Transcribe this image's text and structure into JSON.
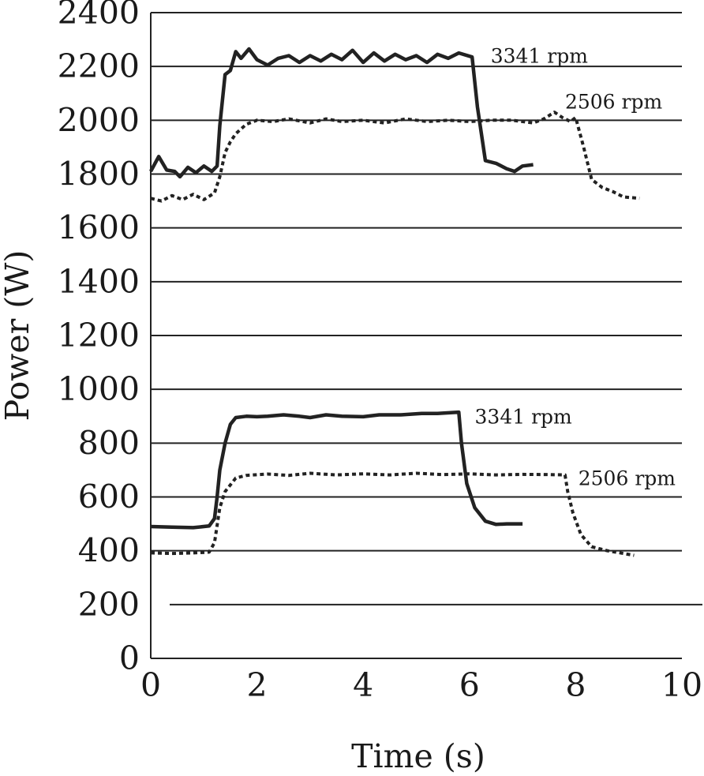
{
  "chart_data": {
    "type": "line",
    "xlabel": "Time (s)",
    "ylabel": "Power (W)",
    "xlim": [
      0,
      10
    ],
    "ylim": [
      0,
      2400
    ],
    "x_ticks": [
      "0",
      "2",
      "4",
      "6",
      "8",
      "10"
    ],
    "y_ticks": [
      "0",
      "200",
      "400",
      "600",
      "800",
      "1000",
      "1200",
      "1400",
      "1600",
      "1800",
      "2000",
      "2200",
      "2400"
    ],
    "grid": "horizontal",
    "series": [
      {
        "name": "3341 rpm",
        "style": "solid",
        "points": [
          [
            0,
            1810
          ],
          [
            0.15,
            1865
          ],
          [
            0.3,
            1815
          ],
          [
            0.45,
            1810
          ],
          [
            0.55,
            1790
          ],
          [
            0.7,
            1825
          ],
          [
            0.85,
            1805
          ],
          [
            1.0,
            1830
          ],
          [
            1.15,
            1810
          ],
          [
            1.25,
            1830
          ],
          [
            1.3,
            1980
          ],
          [
            1.4,
            2170
          ],
          [
            1.5,
            2185
          ],
          [
            1.6,
            2255
          ],
          [
            1.7,
            2230
          ],
          [
            1.85,
            2265
          ],
          [
            2.0,
            2225
          ],
          [
            2.2,
            2205
          ],
          [
            2.4,
            2230
          ],
          [
            2.6,
            2240
          ],
          [
            2.8,
            2215
          ],
          [
            3.0,
            2240
          ],
          [
            3.2,
            2220
          ],
          [
            3.4,
            2245
          ],
          [
            3.6,
            2225
          ],
          [
            3.8,
            2260
          ],
          [
            4.0,
            2215
          ],
          [
            4.2,
            2250
          ],
          [
            4.4,
            2220
          ],
          [
            4.6,
            2245
          ],
          [
            4.8,
            2225
          ],
          [
            5.0,
            2240
          ],
          [
            5.2,
            2215
          ],
          [
            5.4,
            2245
          ],
          [
            5.6,
            2230
          ],
          [
            5.8,
            2250
          ],
          [
            6.05,
            2235
          ],
          [
            6.15,
            2050
          ],
          [
            6.3,
            1850
          ],
          [
            6.5,
            1840
          ],
          [
            6.7,
            1820
          ],
          [
            6.85,
            1810
          ],
          [
            7.0,
            1830
          ],
          [
            7.2,
            1835
          ]
        ]
      },
      {
        "name": "2506 rpm",
        "style": "dotted",
        "points": [
          [
            0,
            1710
          ],
          [
            0.2,
            1700
          ],
          [
            0.4,
            1720
          ],
          [
            0.6,
            1705
          ],
          [
            0.8,
            1725
          ],
          [
            1.0,
            1705
          ],
          [
            1.2,
            1730
          ],
          [
            1.3,
            1790
          ],
          [
            1.4,
            1880
          ],
          [
            1.5,
            1920
          ],
          [
            1.6,
            1950
          ],
          [
            1.8,
            1985
          ],
          [
            2.0,
            2000
          ],
          [
            2.3,
            1995
          ],
          [
            2.6,
            2005
          ],
          [
            3.0,
            1990
          ],
          [
            3.3,
            2005
          ],
          [
            3.6,
            1995
          ],
          [
            4.0,
            2000
          ],
          [
            4.4,
            1990
          ],
          [
            4.8,
            2005
          ],
          [
            5.2,
            1995
          ],
          [
            5.6,
            2000
          ],
          [
            6.0,
            1995
          ],
          [
            6.4,
            2000
          ],
          [
            6.8,
            2000
          ],
          [
            7.2,
            1990
          ],
          [
            7.4,
            2005
          ],
          [
            7.6,
            2030
          ],
          [
            7.75,
            2010
          ],
          [
            7.9,
            1995
          ],
          [
            8.0,
            2010
          ],
          [
            8.15,
            1900
          ],
          [
            8.3,
            1780
          ],
          [
            8.5,
            1750
          ],
          [
            8.7,
            1735
          ],
          [
            8.9,
            1715
          ],
          [
            9.2,
            1710
          ]
        ]
      },
      {
        "name": "3341 rpm",
        "style": "solid",
        "points": [
          [
            0,
            490
          ],
          [
            0.4,
            488
          ],
          [
            0.8,
            486
          ],
          [
            1.1,
            492
          ],
          [
            1.2,
            520
          ],
          [
            1.25,
            600
          ],
          [
            1.3,
            700
          ],
          [
            1.4,
            800
          ],
          [
            1.5,
            870
          ],
          [
            1.6,
            895
          ],
          [
            1.8,
            900
          ],
          [
            2.0,
            898
          ],
          [
            2.2,
            900
          ],
          [
            2.5,
            905
          ],
          [
            2.8,
            900
          ],
          [
            3.0,
            895
          ],
          [
            3.3,
            905
          ],
          [
            3.6,
            900
          ],
          [
            4.0,
            898
          ],
          [
            4.3,
            905
          ],
          [
            4.7,
            905
          ],
          [
            5.1,
            910
          ],
          [
            5.4,
            910
          ],
          [
            5.8,
            915
          ],
          [
            5.85,
            800
          ],
          [
            5.95,
            650
          ],
          [
            6.1,
            560
          ],
          [
            6.3,
            510
          ],
          [
            6.5,
            498
          ],
          [
            6.7,
            500
          ],
          [
            7.0,
            500
          ]
        ]
      },
      {
        "name": "2506 rpm",
        "style": "dotted",
        "points": [
          [
            0,
            392
          ],
          [
            0.4,
            390
          ],
          [
            0.8,
            392
          ],
          [
            1.1,
            395
          ],
          [
            1.2,
            430
          ],
          [
            1.3,
            560
          ],
          [
            1.4,
            620
          ],
          [
            1.6,
            670
          ],
          [
            1.8,
            680
          ],
          [
            2.2,
            685
          ],
          [
            2.6,
            680
          ],
          [
            3.0,
            688
          ],
          [
            3.5,
            682
          ],
          [
            4.0,
            686
          ],
          [
            4.5,
            682
          ],
          [
            5.0,
            688
          ],
          [
            5.5,
            683
          ],
          [
            6.0,
            686
          ],
          [
            6.5,
            682
          ],
          [
            7.0,
            684
          ],
          [
            7.5,
            683
          ],
          [
            7.8,
            682
          ],
          [
            7.85,
            620
          ],
          [
            7.95,
            540
          ],
          [
            8.1,
            460
          ],
          [
            8.3,
            415
          ],
          [
            8.6,
            400
          ],
          [
            8.9,
            390
          ],
          [
            9.1,
            383
          ]
        ]
      }
    ],
    "annotations": [
      {
        "text": "3341 rpm",
        "x": 6.4,
        "y": 2240
      },
      {
        "text": "2506 rpm",
        "x": 7.8,
        "y": 2070
      },
      {
        "text": "3341 rpm",
        "x": 6.1,
        "y": 900
      },
      {
        "text": "2506 rpm",
        "x": 8.05,
        "y": 670
      }
    ]
  }
}
